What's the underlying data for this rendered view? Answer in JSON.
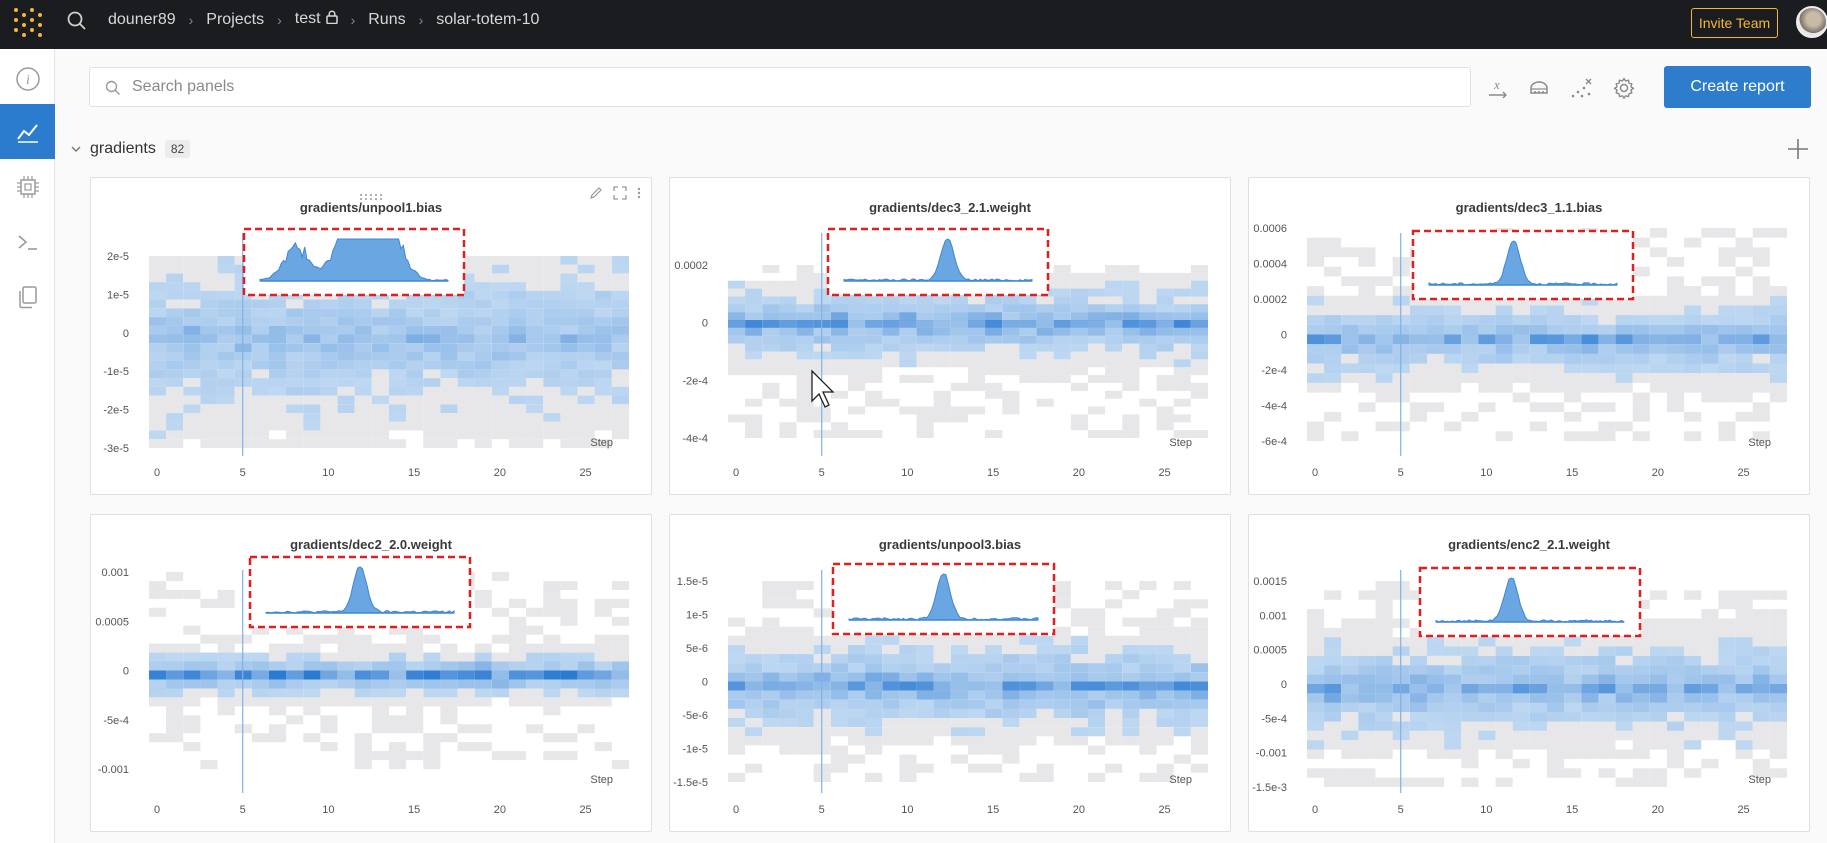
{
  "topbar": {
    "breadcrumbs": [
      "douner89",
      "Projects",
      "test",
      "Runs",
      "solar-totem-10"
    ],
    "invite_label": "Invite Team"
  },
  "rail": {
    "items": [
      {
        "icon": "info-icon",
        "active": false
      },
      {
        "icon": "chart-icon",
        "active": true
      },
      {
        "icon": "cpu-icon",
        "active": false
      },
      {
        "icon": "terminal-icon",
        "active": false
      },
      {
        "icon": "files-icon",
        "active": false
      }
    ]
  },
  "toolbar": {
    "search_placeholder": "Search panels",
    "icons": [
      "x-axis-icon",
      "smoothing-icon",
      "outlier-icon",
      "gear-icon"
    ],
    "create_report_label": "Create report"
  },
  "section": {
    "title": "gradients",
    "count": "82"
  },
  "colors": {
    "accent": "#2e7dcd",
    "highlight_box": "#e0201e",
    "bin_strong": "#2b7bd3",
    "bin_light": "#e9e9eb"
  },
  "panels": [
    {
      "title": "gradients/unpool1.bias",
      "y_ticks": [
        "2e-5",
        "1e-5",
        "0",
        "-1e-5",
        "-2e-5",
        "-3e-5"
      ],
      "x_ticks": [
        "0",
        "5",
        "10",
        "15",
        "20",
        "25"
      ],
      "x_label": "Step"
    },
    {
      "title": "gradients/dec3_2.1.weight",
      "y_ticks": [
        "0.0002",
        "0",
        "-2e-4",
        "-4e-4"
      ],
      "x_ticks": [
        "0",
        "5",
        "10",
        "15",
        "20",
        "25"
      ],
      "x_label": "Step"
    },
    {
      "title": "gradients/dec3_1.1.bias",
      "y_ticks": [
        "0.0006",
        "0.0004",
        "0.0002",
        "0",
        "-2e-4",
        "-4e-4",
        "-6e-4"
      ],
      "x_ticks": [
        "0",
        "5",
        "10",
        "15",
        "20",
        "25"
      ],
      "x_label": "Step"
    },
    {
      "title": "gradients/dec2_2.0.weight",
      "y_ticks": [
        "0.001",
        "0.0005",
        "0",
        "-5e-4",
        "-0.001"
      ],
      "x_ticks": [
        "0",
        "5",
        "10",
        "15",
        "20",
        "25"
      ],
      "x_label": "Step"
    },
    {
      "title": "gradients/unpool3.bias",
      "y_ticks": [
        "1.5e-5",
        "1e-5",
        "5e-6",
        "0",
        "-5e-6",
        "-1e-5",
        "-1.5e-5"
      ],
      "x_ticks": [
        "0",
        "5",
        "10",
        "15",
        "20",
        "25"
      ],
      "x_label": "Step"
    },
    {
      "title": "gradients/enc2_2.1.weight",
      "y_ticks": [
        "0.0015",
        "0.001",
        "0.0005",
        "0",
        "-5e-4",
        "-0.001",
        "-1.5e-3"
      ],
      "x_ticks": [
        "0",
        "5",
        "10",
        "15",
        "20",
        "25"
      ],
      "x_label": "Step"
    }
  ]
}
